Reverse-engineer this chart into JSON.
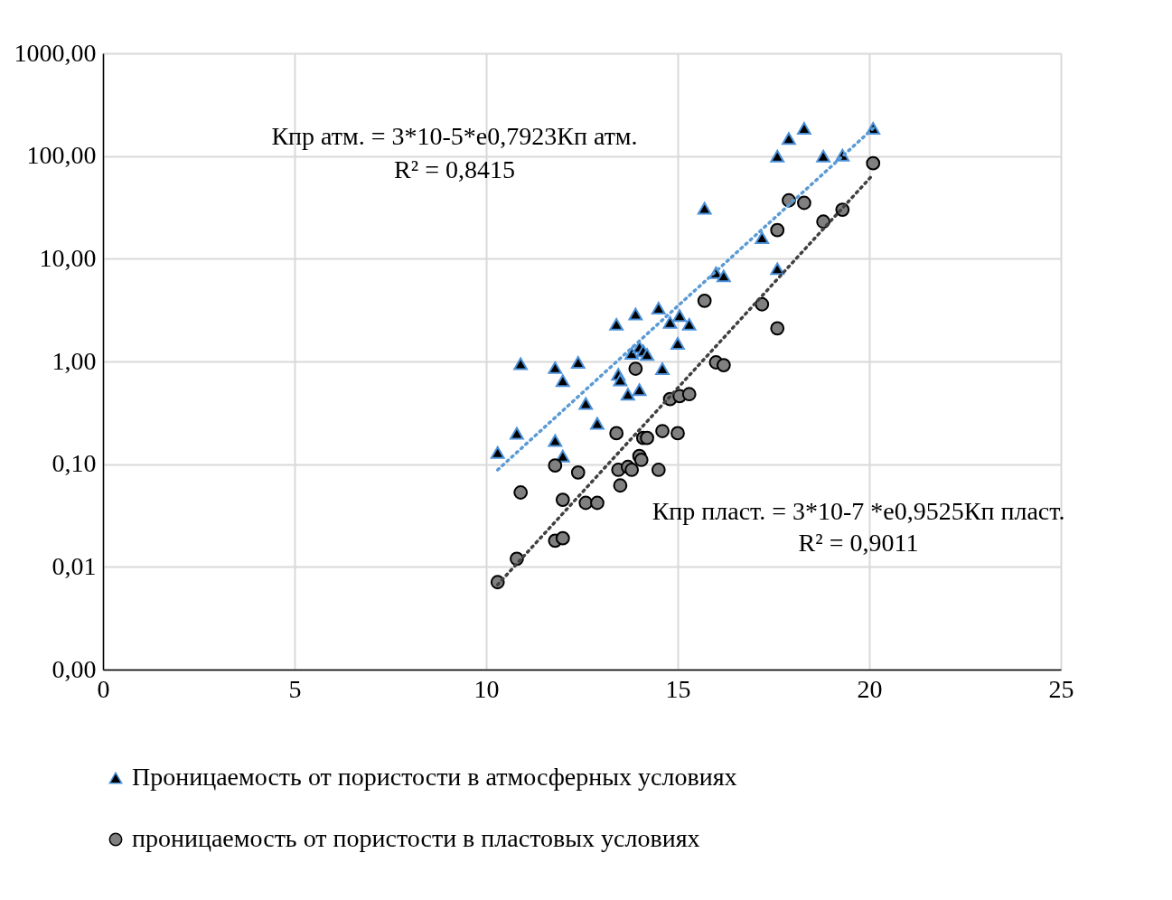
{
  "chart_data": {
    "type": "scatter",
    "annotations": [
      "Кпр атм. = 3*10-5*e0,7923Кп атм.",
      "R² = 0,8415",
      "Кпр пласт. = 3*10-7 *e0,9525Кп пласт.",
      "R² = 0,9011"
    ],
    "xlim": [
      0,
      25
    ],
    "xticks": [
      0,
      5,
      10,
      15,
      20,
      25
    ],
    "ylim": [
      0.001,
      1000
    ],
    "yticks": [
      {
        "value": 0.001,
        "label": "0,00"
      },
      {
        "value": 0.01,
        "label": "0,01"
      },
      {
        "value": 0.1,
        "label": "0,10"
      },
      {
        "value": 1,
        "label": "1,00"
      },
      {
        "value": 10,
        "label": "10,00"
      },
      {
        "value": 100,
        "label": "100,00"
      },
      {
        "value": 1000,
        "label": "1000,00"
      }
    ],
    "log": "y",
    "grid": true,
    "legend": "bottom",
    "series": [
      {
        "name": "Проницаемость от пористости  в атмосферных условиях",
        "marker": "triangle",
        "color": "#000000",
        "x": [
          10.3,
          10.8,
          10.9,
          11.8,
          12.0,
          12.0,
          11.8,
          12.4,
          12.6,
          12.9,
          13.4,
          13.45,
          13.5,
          13.7,
          13.9,
          13.8,
          14.0,
          14.0,
          14.1,
          14.2,
          14.5,
          14.6,
          14.8,
          15.0,
          15.05,
          15.3,
          15.7,
          16.0,
          16.2,
          17.2,
          17.6,
          17.6,
          17.9,
          18.3,
          18.8,
          19.3,
          20.1
        ],
        "values": [
          0.13,
          0.2,
          0.95,
          0.87,
          0.65,
          0.12,
          0.17,
          0.98,
          0.39,
          0.25,
          2.3,
          0.75,
          0.66,
          0.48,
          2.9,
          1.2,
          0.53,
          1.38,
          1.27,
          1.17,
          3.3,
          0.85,
          2.4,
          1.5,
          2.8,
          2.3,
          31,
          7.3,
          6.8,
          16,
          8.0,
          100,
          148,
          186,
          100,
          102,
          186
        ]
      },
      {
        "name": "проницаемость от пористости  в пластовых условиях",
        "marker": "circle",
        "color": "#808080",
        "x": [
          10.3,
          10.8,
          10.9,
          11.8,
          12.0,
          11.8,
          12.0,
          12.4,
          12.6,
          12.9,
          13.4,
          13.45,
          13.5,
          13.7,
          13.8,
          13.9,
          14.0,
          14.05,
          14.1,
          14.2,
          14.5,
          14.6,
          14.8,
          15.0,
          15.05,
          15.3,
          15.7,
          16.0,
          16.2,
          17.2,
          17.6,
          17.6,
          17.9,
          18.3,
          18.8,
          19.3,
          20.1
        ],
        "values": [
          0.0071,
          0.012,
          0.053,
          0.018,
          0.019,
          0.097,
          0.045,
          0.083,
          0.042,
          0.042,
          0.2,
          0.088,
          0.062,
          0.094,
          0.088,
          0.85,
          0.12,
          0.11,
          0.18,
          0.18,
          0.088,
          0.21,
          0.43,
          0.2,
          0.46,
          0.48,
          3.9,
          0.98,
          0.92,
          3.6,
          2.1,
          19,
          37,
          35,
          23,
          30,
          85
        ]
      },
      {
        "type": "line",
        "line_style": "dotted",
        "color": "#5b9bd5",
        "x": [
          10.3,
          20.1
        ],
        "values": [
          0.088,
          186
        ]
      },
      {
        "type": "line",
        "line_style": "dotted",
        "color": "#404040",
        "x": [
          10.3,
          20.1
        ],
        "values": [
          0.0067,
          66
        ]
      }
    ]
  }
}
